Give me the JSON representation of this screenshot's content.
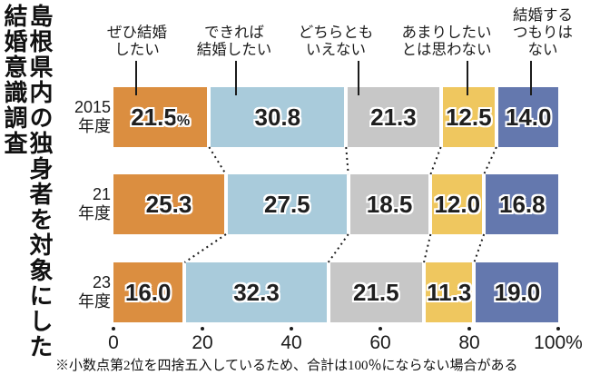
{
  "title": {
    "full": "島根県内の独身者を対象にした結婚意識調査",
    "col1": "島根県内の独身者を対象にした",
    "col2": "結婚意識調査"
  },
  "chart_data": {
    "type": "bar",
    "stacked": true,
    "orientation": "horizontal",
    "unit": "%",
    "title": "島根県内の独身者を対象にした結婚意識調査",
    "categories": [
      "ぜひ結婚したい",
      "できれば結婚したい",
      "どちらともいえない",
      "あまりしたいとは思わない",
      "結婚するつもりはない"
    ],
    "category_label_lines": [
      [
        "ぜひ結婚",
        "したい"
      ],
      [
        "できれば",
        "結婚したい"
      ],
      [
        "どちらとも",
        "いえない"
      ],
      [
        "あまりしたい",
        "とは思わない"
      ],
      [
        "結婚する",
        "つもりは",
        "ない"
      ]
    ],
    "colors": [
      "#DB8E40",
      "#A9CBDB",
      "#C7C7C7",
      "#EFC75F",
      "#6478AE"
    ],
    "rows": [
      {
        "label": "2015年度",
        "label_lines": [
          "2015",
          "年度"
        ],
        "values": [
          21.5,
          30.8,
          21.3,
          12.5,
          14.0
        ],
        "value_labels": [
          "21.5%",
          "30.8",
          "21.3",
          "12.5",
          "14.0"
        ]
      },
      {
        "label": "21年度",
        "label_lines": [
          "21",
          "年度"
        ],
        "values": [
          25.3,
          27.5,
          18.5,
          12.0,
          16.8
        ],
        "value_labels": [
          "25.3",
          "27.5",
          "18.5",
          "12.0",
          "16.8"
        ]
      },
      {
        "label": "23年度",
        "label_lines": [
          "23",
          "年度"
        ],
        "values": [
          16.0,
          32.3,
          21.5,
          11.3,
          19.0
        ],
        "value_labels": [
          "16.0",
          "32.3",
          "21.5",
          "11.3",
          "19.0"
        ]
      }
    ],
    "x_axis": {
      "min": 0,
      "max": 100,
      "tick_labels": [
        "0",
        "20",
        "40",
        "60",
        "80",
        "100%"
      ],
      "tick_values": [
        0,
        20,
        40,
        60,
        80,
        100
      ]
    },
    "legend_position": "top",
    "grid": false
  },
  "footnote": "※小数点第2位を四捨五入しているため、合計は100％にならない場合がある"
}
